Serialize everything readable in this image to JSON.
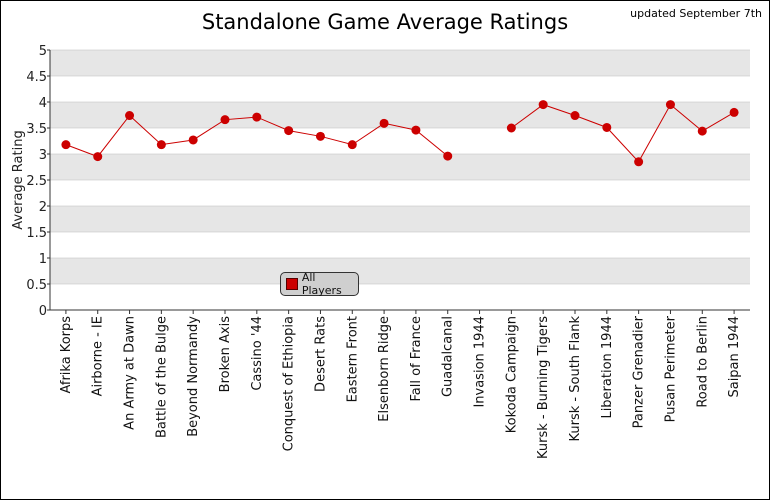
{
  "title": "Standalone Game Average Ratings",
  "update_note": "updated September 7th",
  "colors": {
    "series": "#cc0000",
    "band": "#e6e6e6",
    "grid": "#bbbbbb"
  },
  "chart_data": {
    "type": "line",
    "title": "Standalone Game Average Ratings",
    "ylabel": "Average Rating",
    "xlabel": "",
    "ylim": [
      0,
      5
    ],
    "y_ticks": [
      "0",
      "0.5",
      "1",
      "1.5",
      "2",
      "2.5",
      "3",
      "3.5",
      "4",
      "4.5",
      "5"
    ],
    "grid": "horizontal bands",
    "legend_position": "inside, lower center-left",
    "categories": [
      "Afrika Korps",
      "Airborne - IE",
      "An Army at Dawn",
      "Battle of the Bulge",
      "Beyond Normandy",
      "Broken Axis",
      "Cassino '44",
      "Conquest of Ethiopia",
      "Desert Rats",
      "Eastern Front",
      "Elsenborn Ridge",
      "Fall of France",
      "Guadalcanal",
      "Invasion 1944",
      "Kokoda Campaign",
      "Kursk - Burning Tigers",
      "Kursk - South Flank",
      "Liberation 1944",
      "Panzer Grenadier",
      "Pusan Perimeter",
      "Road to Berlin",
      "Saipan 1944"
    ],
    "series": [
      {
        "name": "All Players",
        "values": [
          3.18,
          2.95,
          3.74,
          3.18,
          3.27,
          3.66,
          3.71,
          3.45,
          3.34,
          3.18,
          3.59,
          3.46,
          2.96,
          null,
          3.5,
          3.95,
          3.74,
          3.51,
          2.85,
          3.95,
          3.44,
          3.8
        ]
      }
    ]
  }
}
